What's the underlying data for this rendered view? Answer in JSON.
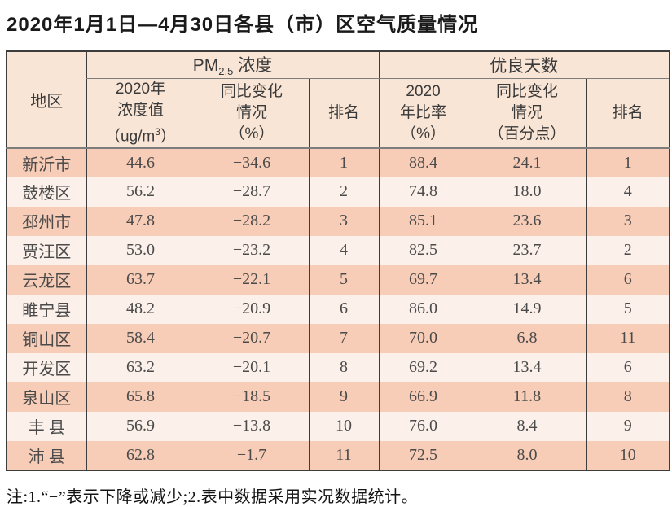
{
  "title": "2020年1月1日—4月30日各县（市）区空气质量情况",
  "note": "注:1.“−”表示下降或减少;2.表中数据采用实况数据统计。",
  "colors": {
    "stripe_dark": "#f8cdb7",
    "stripe_light": "#fcf1ea",
    "header_bg": "#f9e5d5",
    "border_dark": "#3d3d3d",
    "border_mid": "#7d7d7d",
    "text_title": "#1a1a1a",
    "text_header": "#3a3a3a",
    "text_data": "#4b4b4b"
  },
  "table": {
    "region_header": "地区",
    "group_pm": {
      "prefix": "PM",
      "sub": "2.5",
      "suffix": " 浓度"
    },
    "group_good": "优良天数",
    "headers": {
      "pm_value": {
        "l1": "2020年",
        "l2": "浓度值",
        "l3a": "（ug/m",
        "l3sup": "3",
        "l3b": "）"
      },
      "pm_change": {
        "l1": "同比变化",
        "l2": "情况",
        "l3": "（%）"
      },
      "pm_rank": "排名",
      "good_rate": {
        "l1": "2020",
        "l2": "年比率",
        "l3": "（%）"
      },
      "good_change": {
        "l1": "同比变化",
        "l2": "情况",
        "l3": "（百分点）"
      },
      "good_rank": "排名"
    },
    "rows": [
      {
        "region": "新沂市",
        "pm_value": "44.6",
        "pm_change": "−34.6",
        "pm_rank": "1",
        "good_rate": "88.4",
        "good_change": "24.1",
        "good_rank": "1"
      },
      {
        "region": "鼓楼区",
        "pm_value": "56.2",
        "pm_change": "−28.7",
        "pm_rank": "2",
        "good_rate": "74.8",
        "good_change": "18.0",
        "good_rank": "4"
      },
      {
        "region": "邳州市",
        "pm_value": "47.8",
        "pm_change": "−28.2",
        "pm_rank": "3",
        "good_rate": "85.1",
        "good_change": "23.6",
        "good_rank": "3"
      },
      {
        "region": "贾汪区",
        "pm_value": "53.0",
        "pm_change": "−23.2",
        "pm_rank": "4",
        "good_rate": "82.5",
        "good_change": "23.7",
        "good_rank": "2"
      },
      {
        "region": "云龙区",
        "pm_value": "63.7",
        "pm_change": "−22.1",
        "pm_rank": "5",
        "good_rate": "69.7",
        "good_change": "13.4",
        "good_rank": "6"
      },
      {
        "region": "睢宁县",
        "pm_value": "48.2",
        "pm_change": "−20.9",
        "pm_rank": "6",
        "good_rate": "86.0",
        "good_change": "14.9",
        "good_rank": "5"
      },
      {
        "region": "铜山区",
        "pm_value": "58.4",
        "pm_change": "−20.7",
        "pm_rank": "7",
        "good_rate": "70.0",
        "good_change": "6.8",
        "good_rank": "11"
      },
      {
        "region": "开发区",
        "pm_value": "63.2",
        "pm_change": "−20.1",
        "pm_rank": "8",
        "good_rate": "69.2",
        "good_change": "13.4",
        "good_rank": "6"
      },
      {
        "region": "泉山区",
        "pm_value": "65.8",
        "pm_change": "−18.5",
        "pm_rank": "9",
        "good_rate": "66.9",
        "good_change": "11.8",
        "good_rank": "8"
      },
      {
        "region": "丰 县",
        "pm_value": "56.9",
        "pm_change": "−13.8",
        "pm_rank": "10",
        "good_rate": "76.0",
        "good_change": "8.4",
        "good_rank": "9"
      },
      {
        "region": "沛 县",
        "pm_value": "62.8",
        "pm_change": "−1.7",
        "pm_rank": "11",
        "good_rate": "72.5",
        "good_change": "8.0",
        "good_rank": "10"
      }
    ]
  }
}
